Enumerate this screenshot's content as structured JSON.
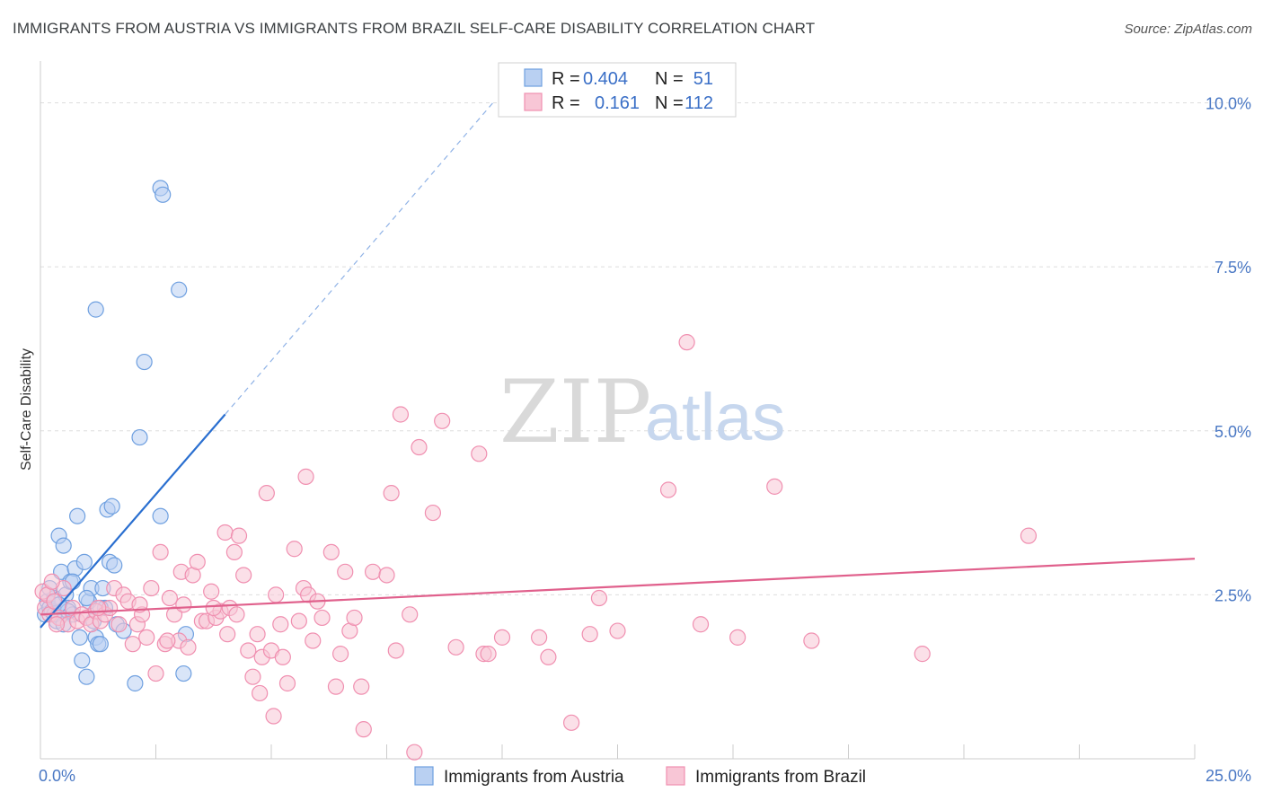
{
  "title": "IMMIGRANTS FROM AUSTRIA VS IMMIGRANTS FROM BRAZIL SELF-CARE DISABILITY CORRELATION CHART",
  "source": "Source: ZipAtlas.com",
  "watermark": {
    "zip": "ZIP",
    "atlas": "atlas"
  },
  "legend_box": {
    "rows": [
      {
        "r_label": "R =",
        "r_value": "0.404",
        "n_label": "N =",
        "n_value": "51",
        "color": "#6fa0e0"
      },
      {
        "r_label": "R =",
        "r_value": "0.161",
        "n_label": "N =",
        "n_value": "112",
        "color": "#f08fb0"
      }
    ]
  },
  "chart_data": {
    "type": "scatter",
    "ylabel": "Self-Care Disability",
    "xlim": [
      0,
      25
    ],
    "ylim": [
      0,
      10.5
    ],
    "x_tick_labels": [
      {
        "value": 0,
        "label": "0.0%"
      },
      {
        "value": 25,
        "label": "25.0%"
      }
    ],
    "y_tick_labels": [
      {
        "value": 2.5,
        "label": "2.5%"
      },
      {
        "value": 5.0,
        "label": "5.0%"
      },
      {
        "value": 7.5,
        "label": "7.5%"
      },
      {
        "value": 10.0,
        "label": "10.0%"
      }
    ],
    "grid": "horizontal dashed",
    "series": [
      {
        "name": "Immigrants from Austria",
        "color": "#6fa0e0",
        "fill": "#b9d0f2",
        "trend": {
          "x0": 0.0,
          "y0": 2.0,
          "x1": 4.0,
          "y1": 5.25,
          "dash_to_x": 9.8,
          "dash_to_y": 10.0,
          "color": "#2a6fd0"
        },
        "points": [
          [
            0.1,
            2.2
          ],
          [
            0.15,
            2.4
          ],
          [
            0.2,
            2.3
          ],
          [
            0.25,
            2.25
          ],
          [
            0.3,
            2.45
          ],
          [
            0.35,
            2.1
          ],
          [
            0.4,
            3.4
          ],
          [
            0.45,
            2.85
          ],
          [
            0.5,
            3.25
          ],
          [
            0.55,
            2.5
          ],
          [
            0.6,
            2.3
          ],
          [
            0.65,
            2.7
          ],
          [
            0.7,
            2.2
          ],
          [
            0.75,
            2.9
          ],
          [
            0.8,
            3.7
          ],
          [
            0.85,
            1.85
          ],
          [
            0.9,
            1.5
          ],
          [
            0.95,
            3.0
          ],
          [
            1.0,
            1.25
          ],
          [
            1.05,
            2.4
          ],
          [
            1.1,
            2.6
          ],
          [
            1.15,
            2.1
          ],
          [
            1.2,
            1.85
          ],
          [
            1.25,
            1.75
          ],
          [
            1.3,
            1.75
          ],
          [
            1.35,
            2.6
          ],
          [
            1.4,
            2.3
          ],
          [
            1.45,
            3.8
          ],
          [
            1.5,
            3.0
          ],
          [
            1.55,
            3.85
          ],
          [
            1.6,
            2.95
          ],
          [
            1.65,
            2.05
          ],
          [
            1.8,
            1.95
          ],
          [
            2.05,
            1.15
          ],
          [
            1.2,
            6.85
          ],
          [
            2.25,
            6.05
          ],
          [
            2.15,
            4.9
          ],
          [
            2.6,
            8.7
          ],
          [
            2.65,
            8.6
          ],
          [
            2.6,
            3.7
          ],
          [
            3.0,
            7.15
          ],
          [
            3.1,
            1.3
          ],
          [
            3.15,
            1.9
          ],
          [
            0.2,
            2.6
          ],
          [
            0.3,
            2.2
          ],
          [
            0.5,
            2.05
          ],
          [
            0.6,
            2.25
          ],
          [
            0.7,
            2.7
          ],
          [
            1.0,
            2.45
          ],
          [
            1.3,
            2.3
          ],
          [
            0.4,
            2.35
          ]
        ]
      },
      {
        "name": "Immigrants from Brazil",
        "color": "#f08fb0",
        "fill": "#f8c6d6",
        "trend": {
          "x0": 0.0,
          "y0": 2.2,
          "x1": 25.0,
          "y1": 3.05,
          "color": "#e0608c"
        },
        "points": [
          [
            0.05,
            2.55
          ],
          [
            0.1,
            2.3
          ],
          [
            0.15,
            2.5
          ],
          [
            0.2,
            2.2
          ],
          [
            0.3,
            2.4
          ],
          [
            0.4,
            2.15
          ],
          [
            0.5,
            2.6
          ],
          [
            0.6,
            2.05
          ],
          [
            0.7,
            2.3
          ],
          [
            0.8,
            2.1
          ],
          [
            0.9,
            2.2
          ],
          [
            1.0,
            2.15
          ],
          [
            1.1,
            2.05
          ],
          [
            1.2,
            2.25
          ],
          [
            1.3,
            2.1
          ],
          [
            1.4,
            2.2
          ],
          [
            1.5,
            2.3
          ],
          [
            1.6,
            2.6
          ],
          [
            1.7,
            2.05
          ],
          [
            1.8,
            2.5
          ],
          [
            1.9,
            2.4
          ],
          [
            2.0,
            1.75
          ],
          [
            2.1,
            2.05
          ],
          [
            2.2,
            2.2
          ],
          [
            2.3,
            1.85
          ],
          [
            2.4,
            2.6
          ],
          [
            2.5,
            1.3
          ],
          [
            2.6,
            3.15
          ],
          [
            2.7,
            1.75
          ],
          [
            2.8,
            2.45
          ],
          [
            2.9,
            2.2
          ],
          [
            3.0,
            1.8
          ],
          [
            3.05,
            2.85
          ],
          [
            3.1,
            2.35
          ],
          [
            3.2,
            1.7
          ],
          [
            3.3,
            2.8
          ],
          [
            3.4,
            3.0
          ],
          [
            3.5,
            2.1
          ],
          [
            3.6,
            2.1
          ],
          [
            3.7,
            2.55
          ],
          [
            3.8,
            2.15
          ],
          [
            3.9,
            2.25
          ],
          [
            4.0,
            3.45
          ],
          [
            4.05,
            1.9
          ],
          [
            4.1,
            2.3
          ],
          [
            4.2,
            3.15
          ],
          [
            4.3,
            3.4
          ],
          [
            4.4,
            2.8
          ],
          [
            4.5,
            1.65
          ],
          [
            4.6,
            1.25
          ],
          [
            4.7,
            1.9
          ],
          [
            4.75,
            1.0
          ],
          [
            4.8,
            1.55
          ],
          [
            4.9,
            4.05
          ],
          [
            5.0,
            1.65
          ],
          [
            5.05,
            0.65
          ],
          [
            5.1,
            2.5
          ],
          [
            5.2,
            2.05
          ],
          [
            5.35,
            1.15
          ],
          [
            5.5,
            3.2
          ],
          [
            5.6,
            2.1
          ],
          [
            5.7,
            2.6
          ],
          [
            5.75,
            4.3
          ],
          [
            5.8,
            2.5
          ],
          [
            5.9,
            1.8
          ],
          [
            6.0,
            2.4
          ],
          [
            6.1,
            2.15
          ],
          [
            6.3,
            3.15
          ],
          [
            6.4,
            1.1
          ],
          [
            6.5,
            1.6
          ],
          [
            6.6,
            2.85
          ],
          [
            6.7,
            1.95
          ],
          [
            6.8,
            2.15
          ],
          [
            6.95,
            1.1
          ],
          [
            7.0,
            0.45
          ],
          [
            7.2,
            2.85
          ],
          [
            7.5,
            2.8
          ],
          [
            7.6,
            4.05
          ],
          [
            7.7,
            1.65
          ],
          [
            7.8,
            5.25
          ],
          [
            8.0,
            2.2
          ],
          [
            8.1,
            0.1
          ],
          [
            8.2,
            4.75
          ],
          [
            8.5,
            3.75
          ],
          [
            8.7,
            5.15
          ],
          [
            9.0,
            1.7
          ],
          [
            9.5,
            4.65
          ],
          [
            9.6,
            1.6
          ],
          [
            9.7,
            1.6
          ],
          [
            10.0,
            1.85
          ],
          [
            10.8,
            1.85
          ],
          [
            11.0,
            1.55
          ],
          [
            11.5,
            0.55
          ],
          [
            11.9,
            1.9
          ],
          [
            12.1,
            2.45
          ],
          [
            12.5,
            1.95
          ],
          [
            13.6,
            4.1
          ],
          [
            14.0,
            6.35
          ],
          [
            14.3,
            2.05
          ],
          [
            15.1,
            1.85
          ],
          [
            15.9,
            4.15
          ],
          [
            16.7,
            1.8
          ],
          [
            19.1,
            1.6
          ],
          [
            21.4,
            3.4
          ],
          [
            0.25,
            2.7
          ],
          [
            0.35,
            2.05
          ],
          [
            1.25,
            2.3
          ],
          [
            2.15,
            2.35
          ],
          [
            2.75,
            1.8
          ],
          [
            3.75,
            2.3
          ],
          [
            4.25,
            2.2
          ],
          [
            5.25,
            1.55
          ]
        ]
      }
    ]
  },
  "bottom_legend": [
    {
      "label": "Immigrants from Austria",
      "color": "#6fa0e0"
    },
    {
      "label": "Immigrants from Brazil",
      "color": "#f08fb0"
    }
  ]
}
